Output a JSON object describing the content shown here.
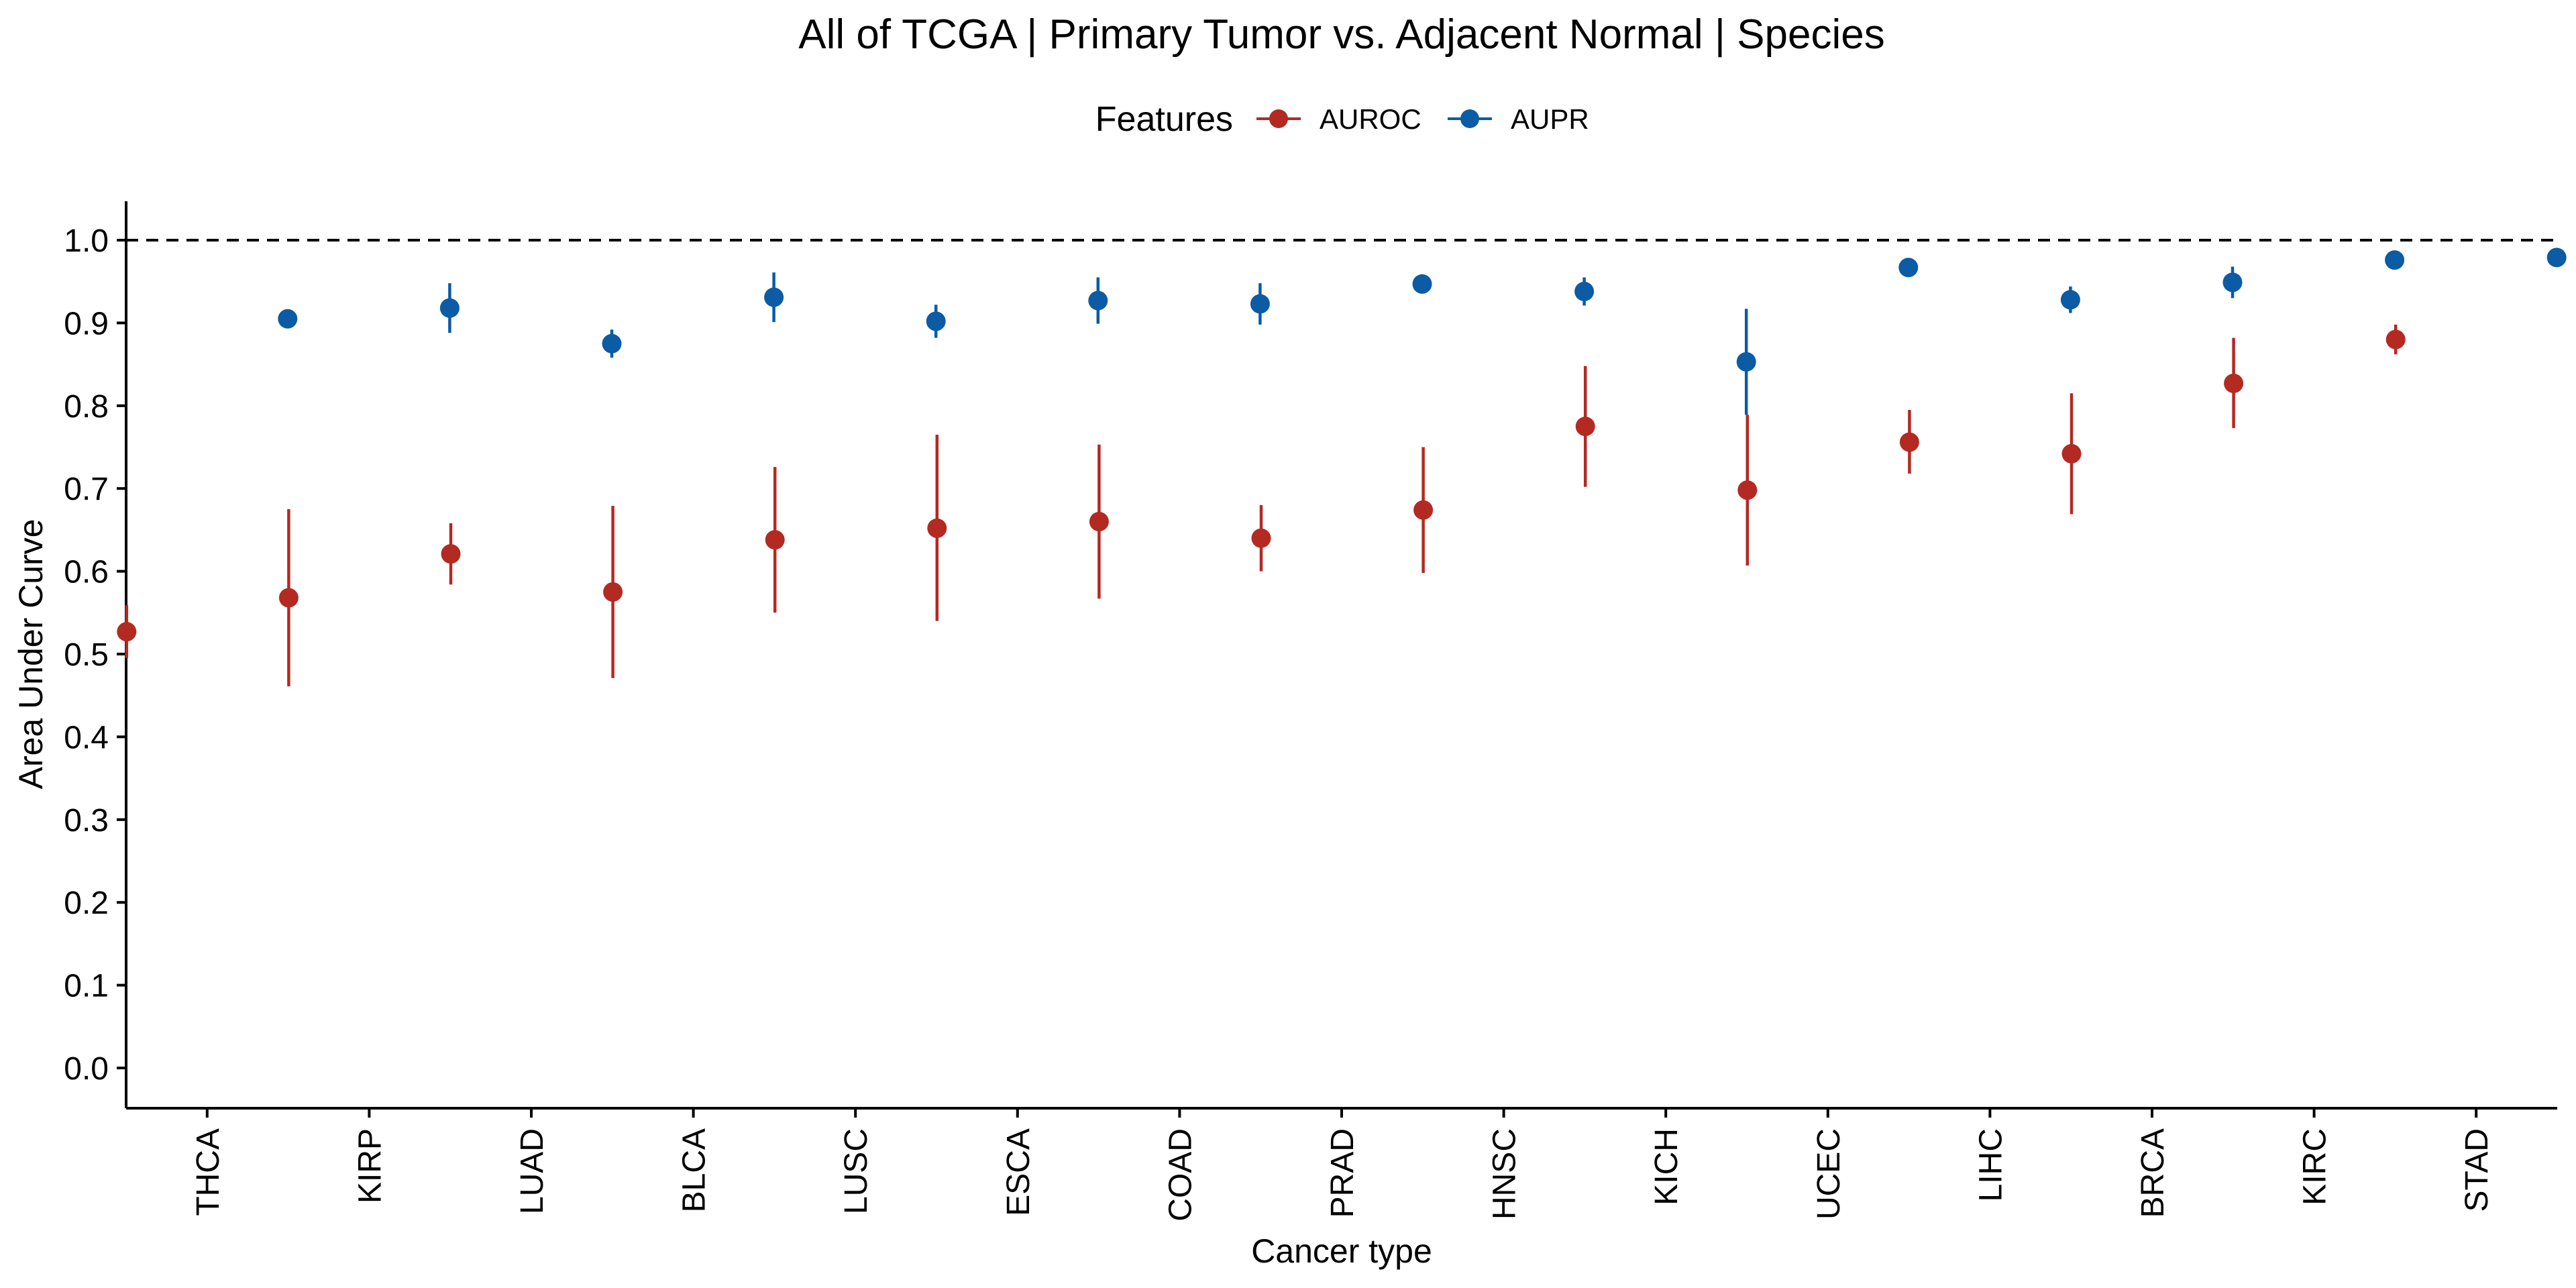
{
  "chart_data": {
    "type": "scatter",
    "subtype": "point-with-error-bars",
    "title": "All of TCGA | Primary Tumor vs. Adjacent Normal | Species",
    "xlabel": "Cancer type",
    "ylabel": "Area Under Curve",
    "ylim": [
      -0.05,
      1.05
    ],
    "yticks": [
      "0.0",
      "0.1",
      "0.2",
      "0.3",
      "0.4",
      "0.5",
      "0.6",
      "0.7",
      "0.8",
      "0.9",
      "1.0"
    ],
    "reference_line": {
      "y": 1.0,
      "style": "dashed"
    },
    "grid": false,
    "legend": {
      "title": "Features",
      "position": "top"
    },
    "categories": [
      "THCA",
      "KIRP",
      "LUAD",
      "BLCA",
      "LUSC",
      "ESCA",
      "COAD",
      "PRAD",
      "HNSC",
      "KICH",
      "UCEC",
      "LIHC",
      "BRCA",
      "KIRC",
      "STAD"
    ],
    "series": [
      {
        "name": "AUROC",
        "color": "#B22A22",
        "values": [
          0.527,
          0.568,
          0.621,
          0.575,
          0.638,
          0.652,
          0.66,
          0.64,
          0.674,
          0.775,
          0.698,
          0.756,
          0.742,
          0.827,
          0.88
        ],
        "lower": [
          0.495,
          0.461,
          0.584,
          0.471,
          0.55,
          0.54,
          0.567,
          0.6,
          0.598,
          0.702,
          0.607,
          0.718,
          0.669,
          0.773,
          0.862
        ],
        "upper": [
          0.559,
          0.675,
          0.658,
          0.679,
          0.726,
          0.765,
          0.753,
          0.68,
          0.75,
          0.848,
          0.789,
          0.795,
          0.815,
          0.882,
          0.898
        ]
      },
      {
        "name": "AUPR",
        "color": "#0B5BA5",
        "values": [
          0.905,
          0.918,
          0.875,
          0.931,
          0.902,
          0.927,
          0.923,
          0.947,
          0.938,
          0.853,
          0.967,
          0.928,
          0.949,
          0.976,
          0.979
        ],
        "lower": [
          0.896,
          0.888,
          0.858,
          0.901,
          0.882,
          0.899,
          0.898,
          0.94,
          0.921,
          0.789,
          0.962,
          0.912,
          0.93,
          0.97,
          0.974
        ],
        "upper": [
          0.914,
          0.948,
          0.892,
          0.961,
          0.922,
          0.955,
          0.948,
          0.954,
          0.955,
          0.917,
          0.972,
          0.944,
          0.968,
          0.982,
          0.984
        ]
      }
    ]
  }
}
